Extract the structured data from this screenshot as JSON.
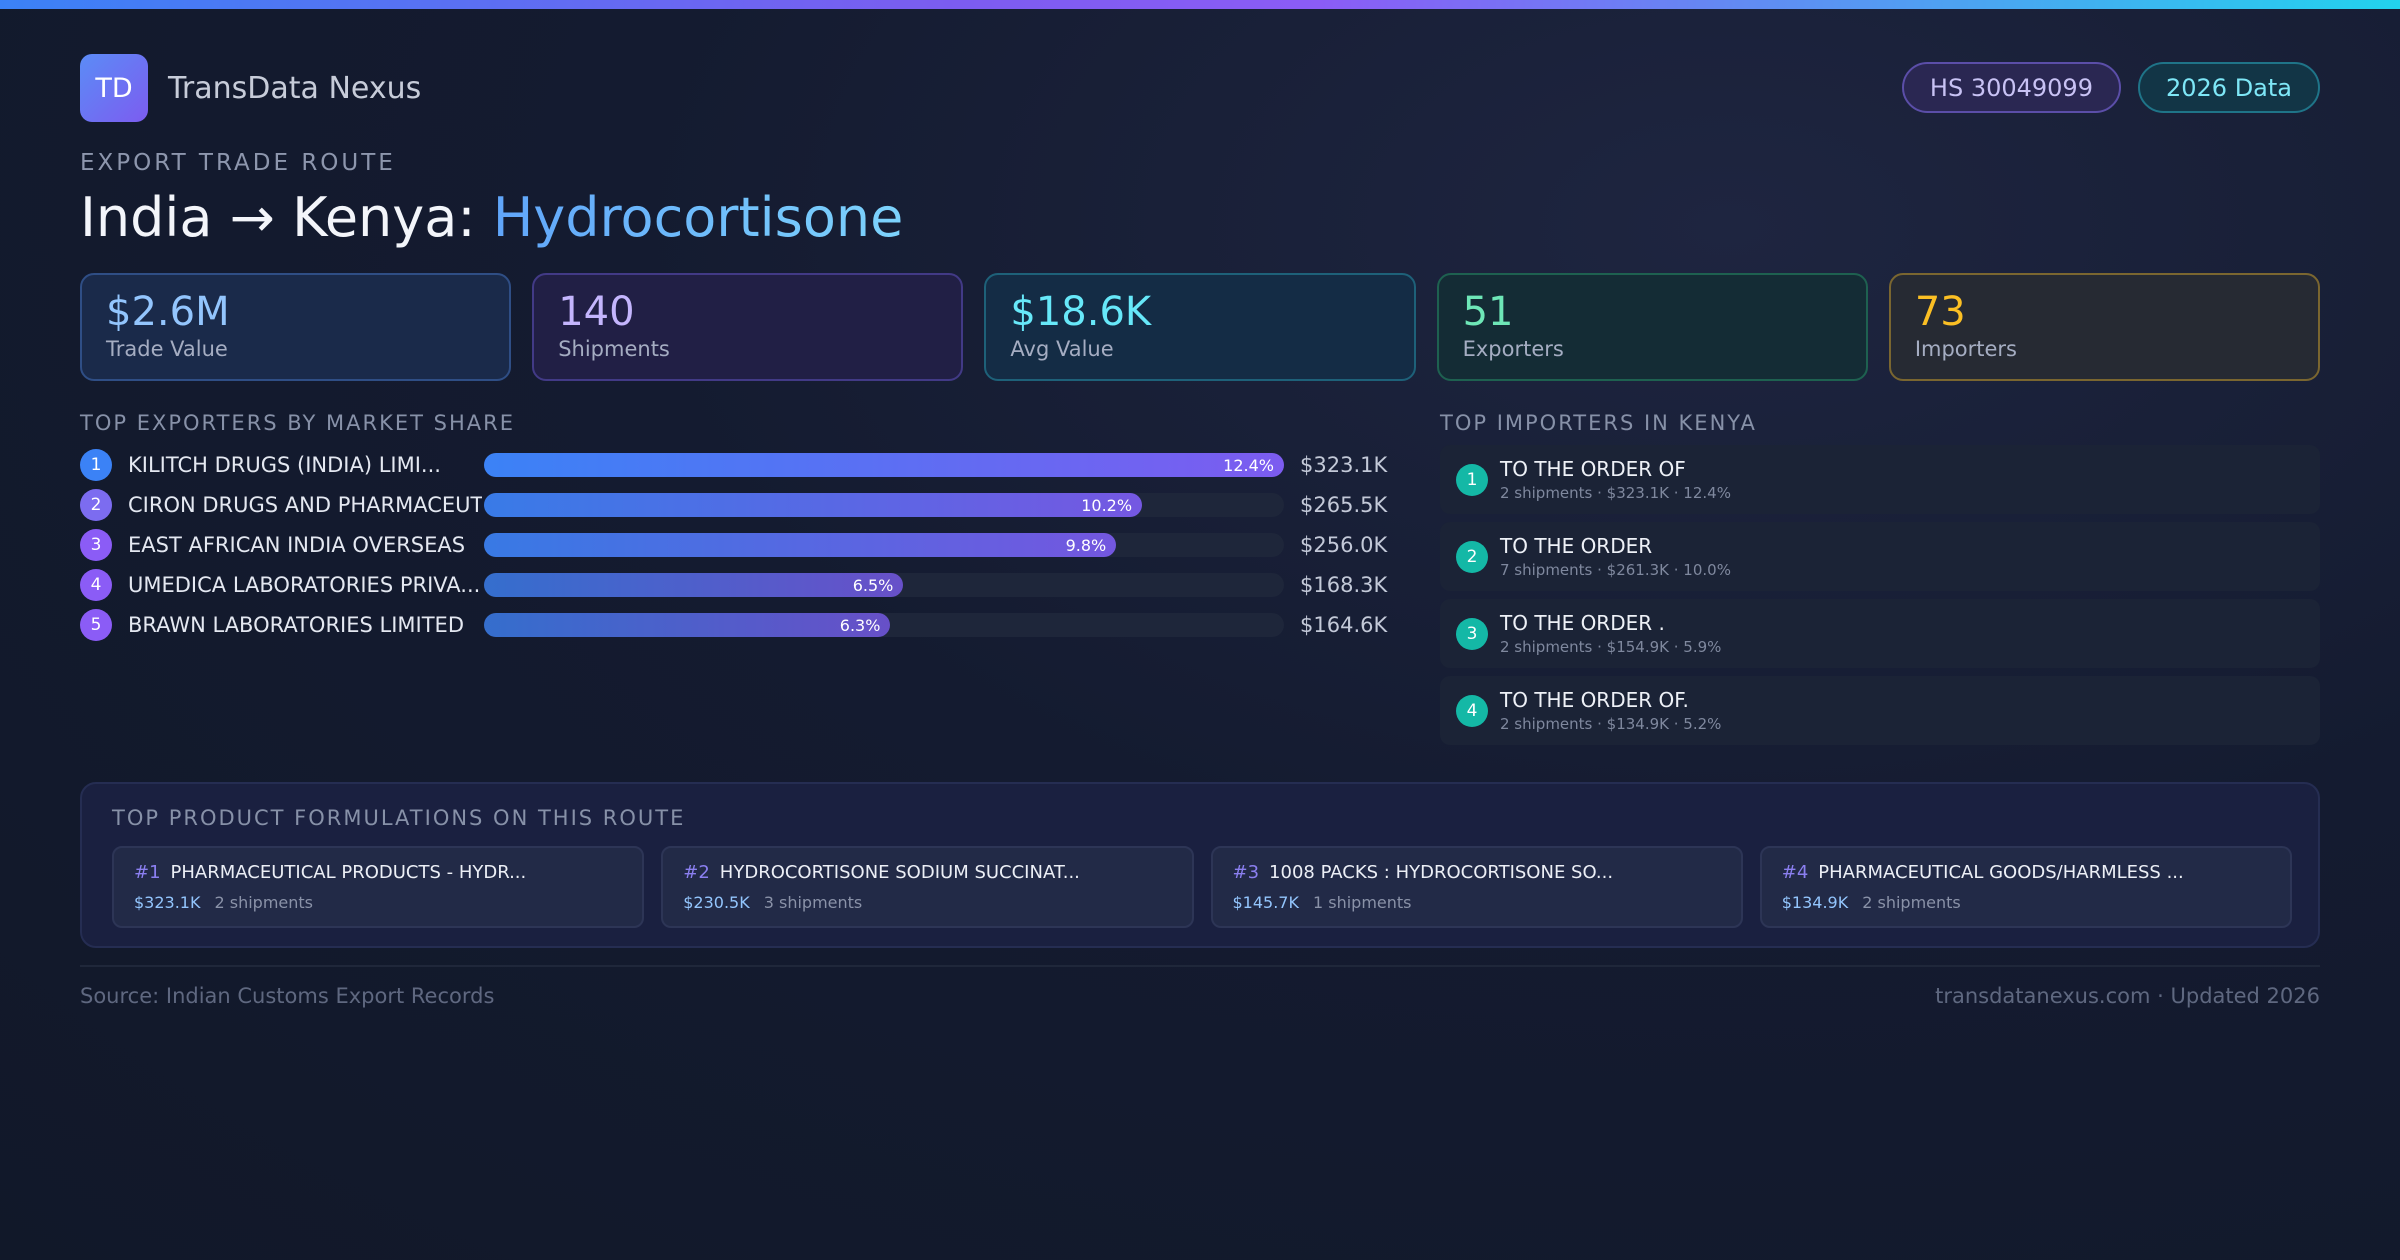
{
  "brand": {
    "logo_text": "TD",
    "name": "TransData Nexus"
  },
  "badges": {
    "hs_code": "HS 30049099",
    "data_year": "2026 Data"
  },
  "route": {
    "eyebrow": "EXPORT TRADE ROUTE",
    "title_prefix": "India → Kenya: ",
    "title_product": "Hydrocortisone"
  },
  "kpis": [
    {
      "value": "$2.6M",
      "label": "Trade Value"
    },
    {
      "value": "140",
      "label": "Shipments"
    },
    {
      "value": "$18.6K",
      "label": "Avg Value"
    },
    {
      "value": "51",
      "label": "Exporters"
    },
    {
      "value": "73",
      "label": "Importers"
    }
  ],
  "exporters": {
    "heading": "TOP EXPORTERS BY MARKET SHARE",
    "items": [
      {
        "rank": "1",
        "name": "KILITCH DRUGS (INDIA) LIMI...",
        "share_label": "12.4%",
        "share": 12.4,
        "value": "$323.1K"
      },
      {
        "rank": "2",
        "name": "CIRON DRUGS AND PHARMACEUT...",
        "share_label": "10.2%",
        "share": 10.2,
        "value": "$265.5K"
      },
      {
        "rank": "3",
        "name": "EAST AFRICAN INDIA OVERSEAS",
        "share_label": "9.8%",
        "share": 9.8,
        "value": "$256.0K"
      },
      {
        "rank": "4",
        "name": "UMEDICA LABORATORIES PRIVA...",
        "share_label": "6.5%",
        "share": 6.5,
        "value": "$168.3K"
      },
      {
        "rank": "5",
        "name": "BRAWN LABORATORIES LIMITED",
        "share_label": "6.3%",
        "share": 6.3,
        "value": "$164.6K"
      }
    ],
    "rank_colors": [
      "#3b82f6",
      "#7c6cf0",
      "#8b5cf6",
      "#8b5cf6",
      "#8b5cf6"
    ]
  },
  "importers": {
    "heading": "TOP IMPORTERS IN KENYA",
    "items": [
      {
        "rank": "1",
        "name": "TO THE ORDER OF",
        "meta": "2 shipments · $323.1K · 12.4%"
      },
      {
        "rank": "2",
        "name": "TO THE ORDER",
        "meta": "7 shipments · $261.3K · 10.0%"
      },
      {
        "rank": "3",
        "name": "TO THE ORDER .",
        "meta": "2 shipments · $154.9K · 5.9%"
      },
      {
        "rank": "4",
        "name": "TO THE ORDER OF.",
        "meta": "2 shipments · $134.9K · 5.2%"
      }
    ]
  },
  "products": {
    "heading": "TOP PRODUCT FORMULATIONS ON THIS ROUTE",
    "items": [
      {
        "num": "#1",
        "name": "PHARMACEUTICAL PRODUCTS - HYDR...",
        "value": "$323.1K",
        "shipments": "2 shipments"
      },
      {
        "num": "#2",
        "name": "HYDROCORTISONE SODIUM SUCCINAT...",
        "value": "$230.5K",
        "shipments": "3 shipments"
      },
      {
        "num": "#3",
        "name": "1008 PACKS : HYDROCORTISONE SO...",
        "value": "$145.7K",
        "shipments": "1 shipments"
      },
      {
        "num": "#4",
        "name": "PHARMACEUTICAL GOODS/HARMLESS ...",
        "value": "$134.9K",
        "shipments": "2 shipments"
      }
    ]
  },
  "footer": {
    "source": "Source: Indian Customs Export Records",
    "site": "transdatanexus.com · Updated 2026"
  }
}
